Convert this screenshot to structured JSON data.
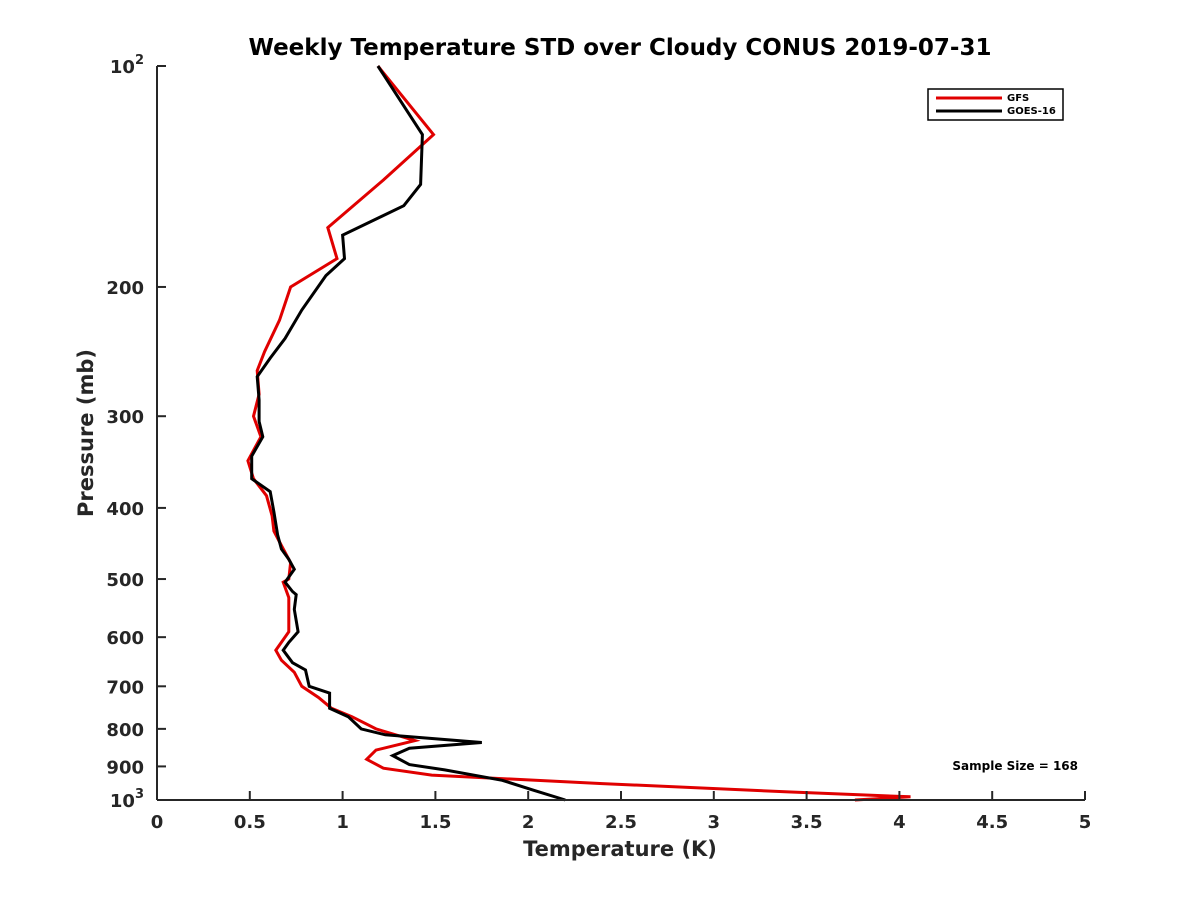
{
  "chart_data": {
    "type": "line",
    "title": "Weekly Temperature STD over Cloudy CONUS 2019-07-31",
    "xlabel": "Temperature (K)",
    "ylabel": "Pressure (mb)",
    "xlim": [
      0,
      5
    ],
    "ylim": [
      100,
      1000
    ],
    "y_scale": "log",
    "y_reversed": true,
    "grid": false,
    "legend_position": "top-right",
    "x_ticks": [
      0,
      0.5,
      1,
      1.5,
      2,
      2.5,
      3,
      3.5,
      4,
      4.5,
      5
    ],
    "x_tick_labels": [
      "0",
      "0.5",
      "1",
      "1.5",
      "2",
      "2.5",
      "3",
      "3.5",
      "4",
      "4.5",
      "5"
    ],
    "y_ticks": [
      100,
      200,
      300,
      400,
      500,
      600,
      700,
      800,
      900,
      1000
    ],
    "y_tick_labels": [
      {
        "base": "10",
        "exp": "2"
      },
      {
        "base": "200",
        "exp": ""
      },
      {
        "base": "300",
        "exp": ""
      },
      {
        "base": "400",
        "exp": ""
      },
      {
        "base": "500",
        "exp": ""
      },
      {
        "base": "600",
        "exp": ""
      },
      {
        "base": "700",
        "exp": ""
      },
      {
        "base": "800",
        "exp": ""
      },
      {
        "base": "900",
        "exp": ""
      },
      {
        "base": "10",
        "exp": "3"
      }
    ],
    "annotation": "Sample Size = 168",
    "series": [
      {
        "name": "GFS",
        "color": "#e00000",
        "points": [
          [
            1.19,
            100
          ],
          [
            1.49,
            124
          ],
          [
            1.22,
            143
          ],
          [
            0.92,
            166
          ],
          [
            0.97,
            183
          ],
          [
            0.72,
            200
          ],
          [
            0.66,
            222
          ],
          [
            0.58,
            245
          ],
          [
            0.54,
            260
          ],
          [
            0.55,
            280
          ],
          [
            0.52,
            300
          ],
          [
            0.56,
            320
          ],
          [
            0.49,
            345
          ],
          [
            0.52,
            365
          ],
          [
            0.59,
            385
          ],
          [
            0.62,
            410
          ],
          [
            0.63,
            430
          ],
          [
            0.67,
            450
          ],
          [
            0.72,
            475
          ],
          [
            0.71,
            500
          ],
          [
            0.68,
            505
          ],
          [
            0.71,
            530
          ],
          [
            0.71,
            560
          ],
          [
            0.71,
            590
          ],
          [
            0.64,
            625
          ],
          [
            0.67,
            645
          ],
          [
            0.74,
            670
          ],
          [
            0.78,
            700
          ],
          [
            0.87,
            725
          ],
          [
            0.94,
            750
          ],
          [
            1.05,
            770
          ],
          [
            1.18,
            800
          ],
          [
            1.39,
            830
          ],
          [
            1.18,
            855
          ],
          [
            1.13,
            880
          ],
          [
            1.22,
            905
          ],
          [
            1.48,
            925
          ],
          [
            2.4,
            950
          ],
          [
            3.4,
            975
          ],
          [
            4.06,
            990
          ],
          [
            3.76,
            1000
          ]
        ]
      },
      {
        "name": "GOES-16",
        "color": "#000000",
        "points": [
          [
            1.19,
            100
          ],
          [
            1.43,
            124
          ],
          [
            1.42,
            145
          ],
          [
            1.33,
            155
          ],
          [
            1.0,
            170
          ],
          [
            1.01,
            183
          ],
          [
            0.91,
            193
          ],
          [
            0.78,
            215
          ],
          [
            0.69,
            235
          ],
          [
            0.61,
            250
          ],
          [
            0.54,
            265
          ],
          [
            0.55,
            285
          ],
          [
            0.55,
            305
          ],
          [
            0.57,
            320
          ],
          [
            0.51,
            340
          ],
          [
            0.51,
            365
          ],
          [
            0.61,
            380
          ],
          [
            0.63,
            405
          ],
          [
            0.65,
            435
          ],
          [
            0.67,
            455
          ],
          [
            0.71,
            470
          ],
          [
            0.74,
            485
          ],
          [
            0.69,
            505
          ],
          [
            0.73,
            520
          ],
          [
            0.75,
            525
          ],
          [
            0.74,
            550
          ],
          [
            0.76,
            590
          ],
          [
            0.71,
            610
          ],
          [
            0.68,
            625
          ],
          [
            0.73,
            650
          ],
          [
            0.8,
            665
          ],
          [
            0.82,
            700
          ],
          [
            0.93,
            715
          ],
          [
            0.93,
            750
          ],
          [
            1.03,
            770
          ],
          [
            1.1,
            800
          ],
          [
            1.23,
            815
          ],
          [
            1.75,
            835
          ],
          [
            1.36,
            850
          ],
          [
            1.27,
            870
          ],
          [
            1.36,
            895
          ],
          [
            1.55,
            910
          ],
          [
            1.86,
            940
          ],
          [
            2.03,
            970
          ],
          [
            2.2,
            1000
          ]
        ]
      }
    ]
  }
}
